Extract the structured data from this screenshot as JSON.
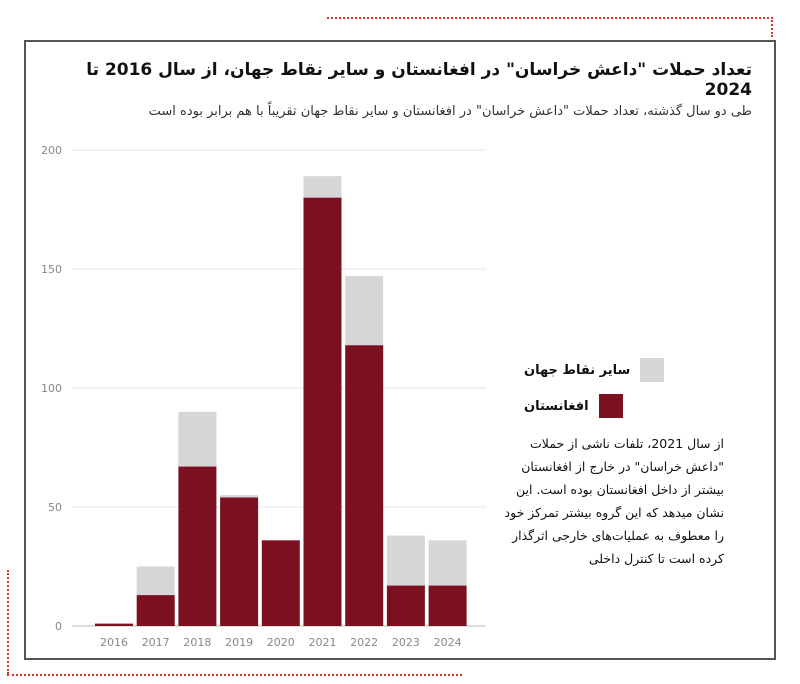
{
  "chart_data": {
    "type": "bar",
    "stacked": true,
    "title": "تعداد حملات \"داعش خراسان\" در افغانستان و سایر نقاط جهان، از سال 2016 تا 2024",
    "subtitle": "طی دو سال گذشته، تعداد حملات \"داعش خراسان\" در افغانستان و سایر نقاط جهان تقریباً با هم برابر بوده است",
    "categories": [
      "2016",
      "2017",
      "2018",
      "2019",
      "2020",
      "2021",
      "2022",
      "2023",
      "2024"
    ],
    "series": [
      {
        "name": "افغانستان",
        "color": "#7a1020",
        "values": [
          1,
          13,
          67,
          54,
          36,
          180,
          118,
          17,
          17
        ]
      },
      {
        "name": "سایر نقاط جهان",
        "color": "#d6d6d6",
        "values": [
          0,
          12,
          23,
          1,
          0,
          9,
          29,
          21,
          19
        ]
      }
    ],
    "yticks": [
      "0",
      "50",
      "100",
      "150",
      "200"
    ],
    "ylim": [
      0,
      200
    ],
    "grid": true,
    "legend_position": "right",
    "annotation": "از سال 2021، تلفات ناشی از حملات \"داعش خراسان\" در خارج از افغانستان بیشتر از داخل افغانستان بوده است. این نشان میدهد که این گروه بیشتر تمرکز خود را معطوف به عملیات‌های خارجی اثرگذار کرده است تا کنترل داخلی"
  }
}
